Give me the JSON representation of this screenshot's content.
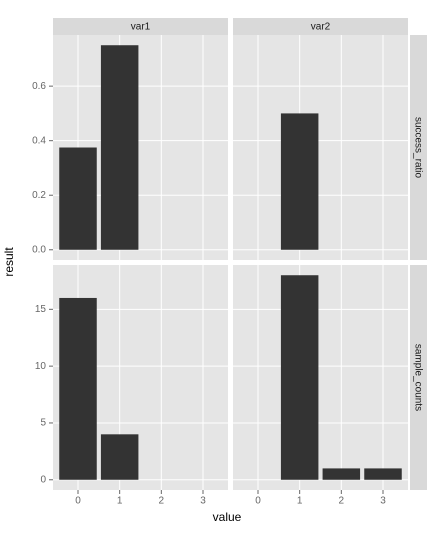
{
  "chart_data": {
    "type": "bar",
    "xlabel": "value",
    "ylabel": "result",
    "columns": [
      "var1",
      "var2"
    ],
    "xlim": [
      -0.6,
      3.6
    ],
    "xticks": [
      0,
      1,
      2,
      3
    ],
    "color": "#333333",
    "rows": [
      {
        "name": "success_ratio",
        "ylim": [
          -0.0375,
          0.7875
        ],
        "yticks": [
          {
            "value": 0,
            "label": "0.0"
          },
          0.2,
          0.4,
          0.6
        ],
        "panels": [
          {
            "x": [
              0,
              1
            ],
            "values": [
              0.375,
              0.75
            ]
          },
          {
            "x": [
              1
            ],
            "values": [
              0.5
            ]
          }
        ]
      },
      {
        "name": "sample_counts",
        "ylim": [
          -0.9,
          18.9
        ],
        "yticks": [
          0,
          5,
          10,
          15
        ],
        "panels": [
          {
            "x": [
              0,
              1
            ],
            "values": [
              16,
              4
            ]
          },
          {
            "x": [
              1,
              2,
              3
            ],
            "values": [
              18,
              1,
              1
            ]
          }
        ]
      }
    ]
  }
}
